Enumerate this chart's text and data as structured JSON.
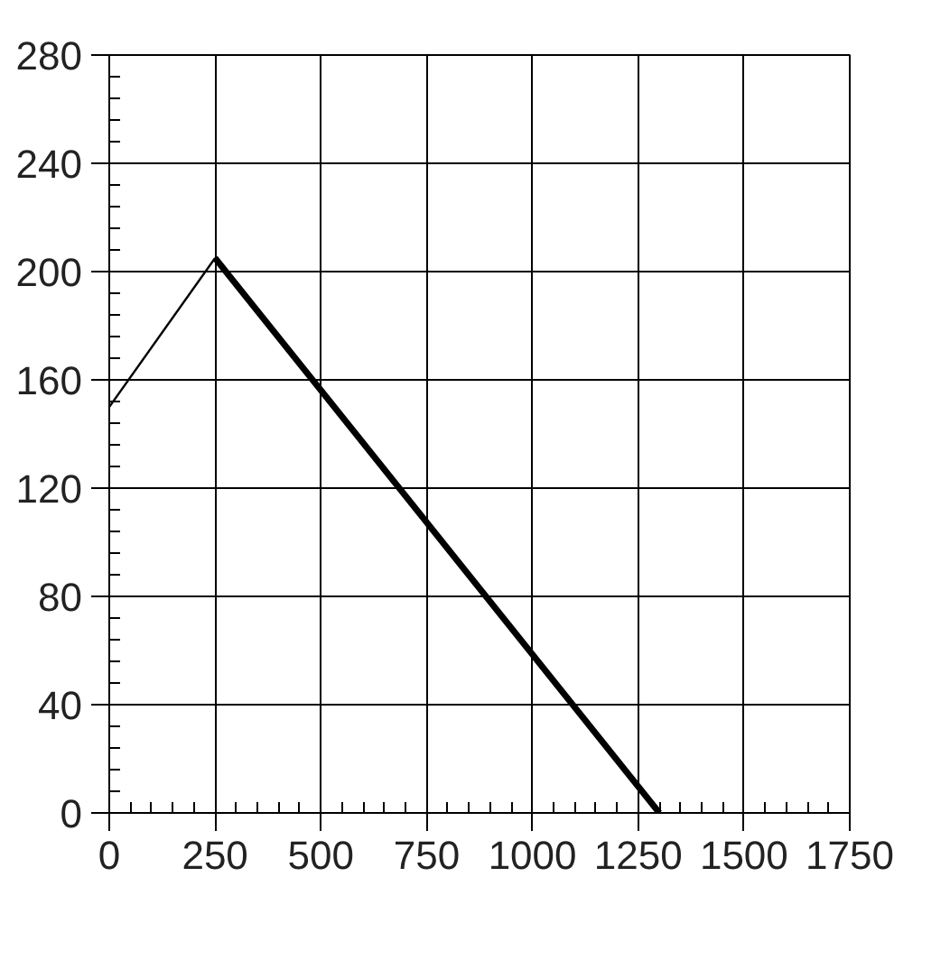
{
  "chart_data": {
    "type": "line",
    "series": [
      {
        "color": "#000000",
        "x": [
          0,
          250
        ],
        "values": [
          150,
          205
        ]
      },
      {
        "color": "#000000",
        "x": [
          250,
          1300
        ],
        "values": [
          205,
          0
        ]
      }
    ],
    "xlim": [
      0,
      1750
    ],
    "ylim": [
      0,
      280
    ],
    "xticks": [
      0,
      250,
      500,
      750,
      1000,
      1250,
      1500,
      1750
    ],
    "yticks": [
      0,
      40,
      80,
      120,
      160,
      200,
      240,
      280
    ],
    "grid": true,
    "marker": "none",
    "line_style": "solid"
  }
}
